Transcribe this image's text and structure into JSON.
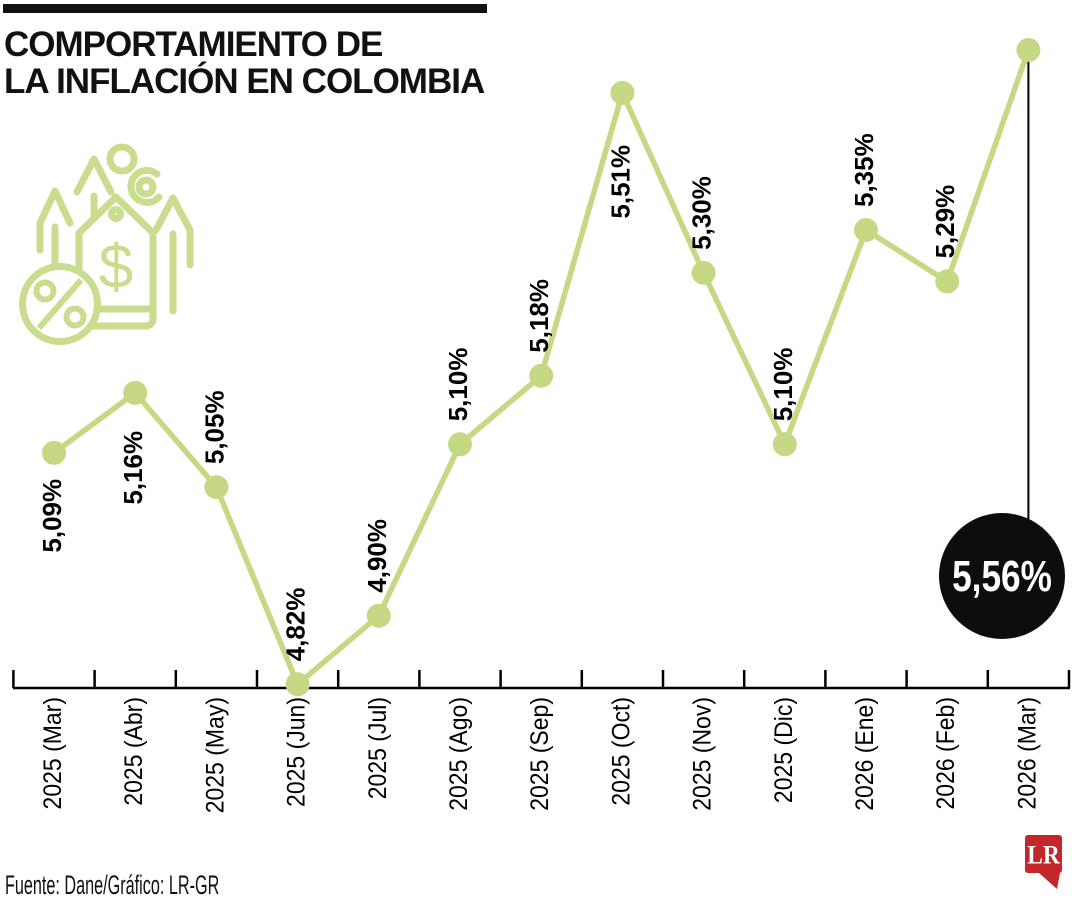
{
  "title": {
    "line1": "COMPORTAMIENTO DE",
    "line2": "LA INFLACIÓN EN COLOMBIA"
  },
  "icon": {
    "name": "rising-prices-icon",
    "dollar": "$",
    "percent": "%"
  },
  "chart_data": {
    "type": "line",
    "title": "Comportamiento de la inflación en Colombia",
    "categories": [
      "2025 (Mar)",
      "2025 (Abr)",
      "2025 (May)",
      "2025 (Jun)",
      "2025 (Jul)",
      "2025 (Ago)",
      "2025 (Sep)",
      "2025 (Oct)",
      "2025 (Nov)",
      "2025 (Dic)",
      "2026 (Ene)",
      "2026 (Feb)",
      "2026 (Mar)"
    ],
    "values": [
      5.09,
      5.16,
      5.05,
      4.82,
      4.9,
      5.1,
      5.18,
      5.51,
      5.3,
      5.1,
      5.35,
      5.29,
      5.56
    ],
    "point_labels": [
      "5,09%",
      "5,16%",
      "5,05%",
      "4,82%",
      "4,90%",
      "5,10%",
      "5,18%",
      "5,51%",
      "5,30%",
      "5,10%",
      "5,35%",
      "5,29%",
      "5,56%"
    ],
    "highlight": {
      "index": 12,
      "label": "5,56%"
    },
    "line_color": "#c5d883",
    "marker_color": "#c5d883",
    "label_color": "#000000",
    "axis_color": "#000000",
    "highlight_bg": "#0d0d0d",
    "highlight_text_color": "#ffffff",
    "ylim": [
      4.8,
      5.6
    ],
    "xlabel": "",
    "ylabel": ""
  },
  "footer": {
    "source": "Fuente: Dane/Gráfico: LR-GR",
    "logo_text": "LR",
    "logo_color": "#c5262c"
  }
}
